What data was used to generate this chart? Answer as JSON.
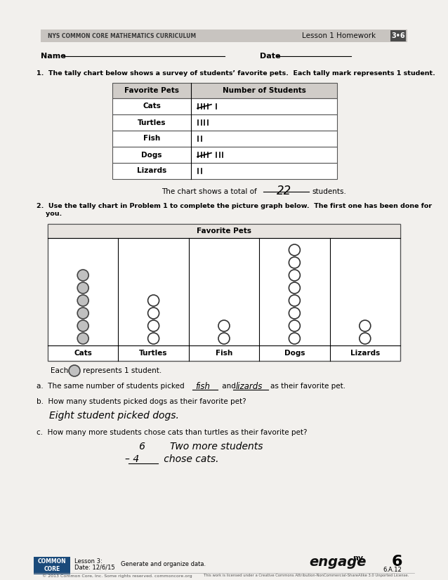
{
  "bg_color": "#f2f0ed",
  "header_bg": "#c8c4c0",
  "header_text": "NYS COMMON CORE MATHEMATICS CURRICULUM",
  "header_right": "Lesson 1 Homework",
  "header_box": "3•6",
  "table_headers": [
    "Favorite Pets",
    "Number of Students"
  ],
  "row_labels": [
    "Cats",
    "Turtles",
    "Fish",
    "Dogs",
    "Lizards"
  ],
  "tally_counts": [
    6,
    4,
    2,
    8,
    2
  ],
  "total_text": "The chart shows a total of",
  "total_value": "22",
  "total_suffix": "students.",
  "title2_line1": "2.  Use the tally chart in Problem 1 to complete the picture graph below.  The first one has been done for",
  "title2_line2": "    you.",
  "graph_title": "Favorite Pets",
  "graph_categories": [
    "Cats",
    "Turtles",
    "Fish",
    "Dogs",
    "Lizards"
  ],
  "graph_counts": [
    6,
    4,
    2,
    8,
    2
  ],
  "footer_lesson": "Lesson 3:",
  "footer_date": "Date: 12/6/15",
  "footer_generate": "Generate and organize data.",
  "footer_standard": "6.A.12"
}
